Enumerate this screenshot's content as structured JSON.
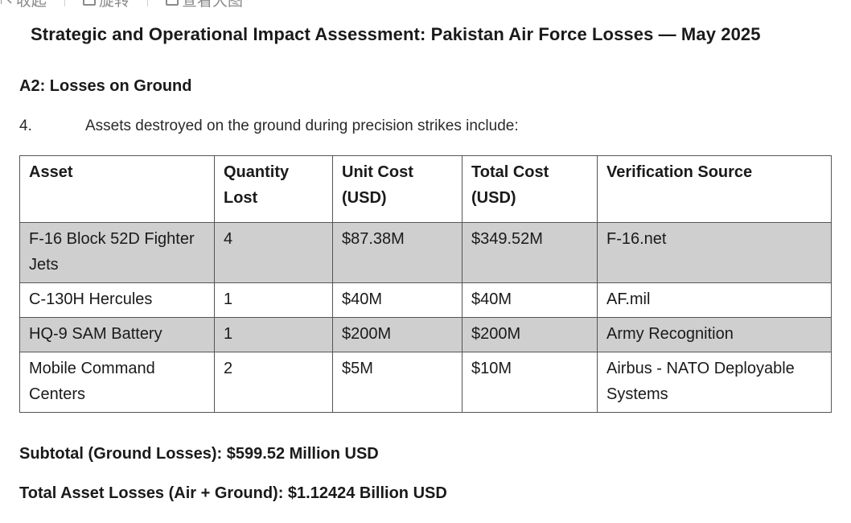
{
  "toolbar": {
    "items": [
      {
        "label": "收起",
        "icon": "collapse-icon"
      },
      {
        "label": "旋转",
        "icon": "rotate-icon"
      },
      {
        "label": "查看大图",
        "icon": "view-large-icon"
      }
    ]
  },
  "document": {
    "title": "Strategic and Operational Impact Assessment: Pakistan Air Force Losses — May 2025",
    "section": "A2: Losses on Ground",
    "paragraph_number": "4.",
    "paragraph_text": "Assets destroyed on the ground during precision strikes include:",
    "table": {
      "headers": [
        "Asset",
        "Quantity Lost",
        "Unit Cost (USD)",
        "Total Cost (USD)",
        "Verification Source"
      ],
      "rows": [
        {
          "asset": "F-16 Block 52D Fighter Jets",
          "quantity": "4",
          "unit_cost": "$87.38M",
          "total_cost": "$349.52M",
          "source": "F-16.net",
          "shaded": true
        },
        {
          "asset": "C-130H Hercules",
          "quantity": "1",
          "unit_cost": "$40M",
          "total_cost": "$40M",
          "source": "AF.mil",
          "shaded": false
        },
        {
          "asset": "HQ-9 SAM Battery",
          "quantity": "1",
          "unit_cost": "$200M",
          "total_cost": "$200M",
          "source": "Army Recognition",
          "shaded": true
        },
        {
          "asset": "Mobile Command Centers",
          "quantity": "2",
          "unit_cost": "$5M",
          "total_cost": "$10M",
          "source": "Airbus - NATO Deployable Systems",
          "shaded": false
        }
      ]
    },
    "subtotal": "Subtotal (Ground Losses): $599.52 Million USD",
    "total": "Total Asset Losses (Air + Ground): $1.12424 Billion USD"
  },
  "colors": {
    "shaded_row": "#cfcfcf",
    "border": "#555555",
    "toolbar_text": "#8a8a8a"
  }
}
